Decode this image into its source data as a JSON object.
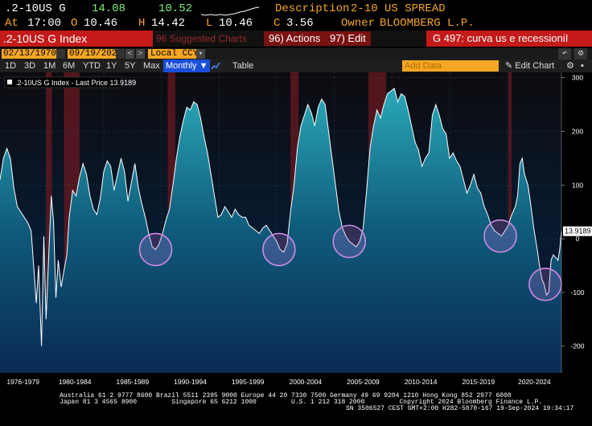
{
  "header": {
    "ticker": ".2-10US G",
    "last_price": "14.08",
    "change": "10.52",
    "description_label": "Description",
    "description_value": "2-10 US SPREAD",
    "at_label": "At",
    "at_value": "17:00",
    "open_label": "O",
    "open_value": "10.46",
    "high_label": "H",
    "high_value": "14.42",
    "low_label": "L",
    "low_value": "10.46",
    "close_label": "C",
    "close_value": "3.56",
    "owner_label": "Owner",
    "owner_value": "BLOOMBERG L.P."
  },
  "toolbar": {
    "index_name": ".2-10US G Index",
    "suggested": "96 Suggested Charts",
    "actions": "96) Actions",
    "edit": "97) Edit",
    "chart_title": "G 497: curva us e recessioniI"
  },
  "date_range": {
    "start": "02/13/1970",
    "end": "09/19/2024",
    "currency": "Local CCY"
  },
  "periods": [
    "1D",
    "3D",
    "1M",
    "6M",
    "YTD",
    "1Y",
    "5Y",
    "Max"
  ],
  "frequency": "Monthly",
  "table_label": "Table",
  "add_data_placeholder": "Add Data",
  "edit_chart": "Edit Chart",
  "icons": {
    "undo": "undo-icon",
    "settings": "gear-icon",
    "line_type": "line-chart-icon",
    "calendar": "calendar-icon",
    "pencil": "pencil-icon"
  },
  "colors": {
    "accent_red": "#c41a1a",
    "amber": "#f5a623",
    "series": "#ffffff",
    "recession_band": "#7a1a1a",
    "circle": "#c97ad6",
    "select_blue": "#1a4fd8"
  },
  "chart_data": {
    "type": "area",
    "legend": ".2-10US G Index - Last Price 13.9189",
    "last_value": "13.9189",
    "y_ticks": [
      300,
      200,
      100,
      0,
      -100,
      -200
    ],
    "ylim": [
      -250,
      310
    ],
    "x_labels": [
      "1976-1979",
      "1980-1984",
      "1985-1989",
      "1990-1994",
      "1995-1999",
      "2000-2004",
      "2005-2009",
      "2010-2014",
      "2015-2019",
      "2020-2024"
    ],
    "xlim": [
      1976.0,
      2024.7
    ],
    "series": [
      {
        "points": [
          [
            1976.0,
            110
          ],
          [
            1976.3,
            150
          ],
          [
            1976.6,
            168
          ],
          [
            1976.9,
            150
          ],
          [
            1977.2,
            95
          ],
          [
            1977.5,
            60
          ],
          [
            1977.8,
            50
          ],
          [
            1978.1,
            40
          ],
          [
            1978.4,
            30
          ],
          [
            1978.7,
            15
          ],
          [
            1978.95,
            -60
          ],
          [
            1979.15,
            -120
          ],
          [
            1979.35,
            -50
          ],
          [
            1979.6,
            -200
          ],
          [
            1979.8,
            5
          ],
          [
            1980.0,
            -150
          ],
          [
            1980.25,
            -20
          ],
          [
            1980.45,
            80
          ],
          [
            1980.65,
            30
          ],
          [
            1980.85,
            -110
          ],
          [
            1981.05,
            -40
          ],
          [
            1981.3,
            -90
          ],
          [
            1981.55,
            -60
          ],
          [
            1981.8,
            -30
          ],
          [
            1982.0,
            40
          ],
          [
            1982.3,
            90
          ],
          [
            1982.6,
            80
          ],
          [
            1982.9,
            115
          ],
          [
            1983.2,
            140
          ],
          [
            1983.5,
            120
          ],
          [
            1983.8,
            80
          ],
          [
            1984.1,
            55
          ],
          [
            1984.4,
            45
          ],
          [
            1984.7,
            75
          ],
          [
            1985.0,
            125
          ],
          [
            1985.3,
            145
          ],
          [
            1985.6,
            135
          ],
          [
            1985.9,
            90
          ],
          [
            1986.2,
            120
          ],
          [
            1986.5,
            150
          ],
          [
            1986.8,
            125
          ],
          [
            1987.1,
            70
          ],
          [
            1987.4,
            105
          ],
          [
            1987.7,
            140
          ],
          [
            1988.0,
            95
          ],
          [
            1988.3,
            65
          ],
          [
            1988.6,
            40
          ],
          [
            1988.9,
            10
          ],
          [
            1989.2,
            -15
          ],
          [
            1989.5,
            -20
          ],
          [
            1989.8,
            -10
          ],
          [
            1990.1,
            10
          ],
          [
            1990.4,
            35
          ],
          [
            1990.7,
            55
          ],
          [
            1991.0,
            100
          ],
          [
            1991.3,
            150
          ],
          [
            1991.6,
            190
          ],
          [
            1991.9,
            220
          ],
          [
            1992.2,
            245
          ],
          [
            1992.5,
            240
          ],
          [
            1992.8,
            255
          ],
          [
            1993.1,
            250
          ],
          [
            1993.4,
            225
          ],
          [
            1993.7,
            190
          ],
          [
            1994.0,
            160
          ],
          [
            1994.3,
            120
          ],
          [
            1994.6,
            80
          ],
          [
            1994.9,
            40
          ],
          [
            1995.2,
            45
          ],
          [
            1995.5,
            60
          ],
          [
            1995.8,
            50
          ],
          [
            1996.1,
            40
          ],
          [
            1996.4,
            55
          ],
          [
            1996.7,
            45
          ],
          [
            1997.0,
            40
          ],
          [
            1997.3,
            40
          ],
          [
            1997.6,
            25
          ],
          [
            1997.9,
            20
          ],
          [
            1998.2,
            15
          ],
          [
            1998.5,
            10
          ],
          [
            1998.8,
            20
          ],
          [
            1999.1,
            25
          ],
          [
            1999.4,
            15
          ],
          [
            1999.7,
            5
          ],
          [
            2000.0,
            -5
          ],
          [
            2000.3,
            -20
          ],
          [
            2000.6,
            -25
          ],
          [
            2000.9,
            -10
          ],
          [
            2001.2,
            50
          ],
          [
            2001.5,
            100
          ],
          [
            2001.8,
            170
          ],
          [
            2002.1,
            210
          ],
          [
            2002.4,
            230
          ],
          [
            2002.7,
            250
          ],
          [
            2003.0,
            235
          ],
          [
            2003.3,
            210
          ],
          [
            2003.6,
            245
          ],
          [
            2003.9,
            260
          ],
          [
            2004.2,
            250
          ],
          [
            2004.5,
            200
          ],
          [
            2004.8,
            150
          ],
          [
            2005.1,
            100
          ],
          [
            2005.4,
            50
          ],
          [
            2005.7,
            20
          ],
          [
            2006.0,
            5
          ],
          [
            2006.3,
            -5
          ],
          [
            2006.6,
            -10
          ],
          [
            2006.9,
            -15
          ],
          [
            2007.2,
            -5
          ],
          [
            2007.5,
            20
          ],
          [
            2007.8,
            90
          ],
          [
            2008.1,
            170
          ],
          [
            2008.4,
            210
          ],
          [
            2008.7,
            240
          ],
          [
            2009.0,
            225
          ],
          [
            2009.3,
            250
          ],
          [
            2009.6,
            270
          ],
          [
            2009.9,
            275
          ],
          [
            2010.2,
            280
          ],
          [
            2010.5,
            255
          ],
          [
            2010.8,
            270
          ],
          [
            2011.1,
            265
          ],
          [
            2011.4,
            240
          ],
          [
            2011.7,
            210
          ],
          [
            2012.0,
            180
          ],
          [
            2012.3,
            165
          ],
          [
            2012.6,
            135
          ],
          [
            2012.9,
            150
          ],
          [
            2013.2,
            160
          ],
          [
            2013.5,
            230
          ],
          [
            2013.8,
            250
          ],
          [
            2014.1,
            230
          ],
          [
            2014.4,
            205
          ],
          [
            2014.7,
            195
          ],
          [
            2015.0,
            150
          ],
          [
            2015.3,
            160
          ],
          [
            2015.6,
            145
          ],
          [
            2015.9,
            135
          ],
          [
            2016.2,
            110
          ],
          [
            2016.5,
            85
          ],
          [
            2016.8,
            100
          ],
          [
            2017.1,
            120
          ],
          [
            2017.4,
            95
          ],
          [
            2017.7,
            85
          ],
          [
            2018.0,
            60
          ],
          [
            2018.3,
            45
          ],
          [
            2018.6,
            25
          ],
          [
            2018.9,
            15
          ],
          [
            2019.2,
            10
          ],
          [
            2019.5,
            5
          ],
          [
            2019.8,
            15
          ],
          [
            2020.1,
            25
          ],
          [
            2020.3,
            40
          ],
          [
            2020.5,
            50
          ],
          [
            2020.7,
            60
          ],
          [
            2020.9,
            80
          ],
          [
            2021.1,
            140
          ],
          [
            2021.3,
            150
          ],
          [
            2021.5,
            120
          ],
          [
            2021.8,
            100
          ],
          [
            2022.0,
            70
          ],
          [
            2022.3,
            20
          ],
          [
            2022.6,
            -20
          ],
          [
            2022.8,
            -50
          ],
          [
            2023.0,
            -75
          ],
          [
            2023.2,
            -85
          ],
          [
            2023.4,
            -105
          ],
          [
            2023.6,
            -100
          ],
          [
            2023.8,
            -40
          ],
          [
            2024.0,
            -30
          ],
          [
            2024.2,
            -35
          ],
          [
            2024.4,
            -40
          ],
          [
            2024.55,
            -20
          ],
          [
            2024.7,
            14
          ]
        ]
      }
    ],
    "recessions": [
      [
        1980.0,
        1980.5
      ],
      [
        1981.55,
        1982.9
      ],
      [
        1990.55,
        1991.2
      ],
      [
        2001.2,
        2001.9
      ],
      [
        2007.95,
        2009.5
      ],
      [
        2020.1,
        2020.35
      ]
    ],
    "inversion_circles": [
      1989.5,
      2000.2,
      2006.3,
      2019.4,
      2023.3
    ]
  }
}
